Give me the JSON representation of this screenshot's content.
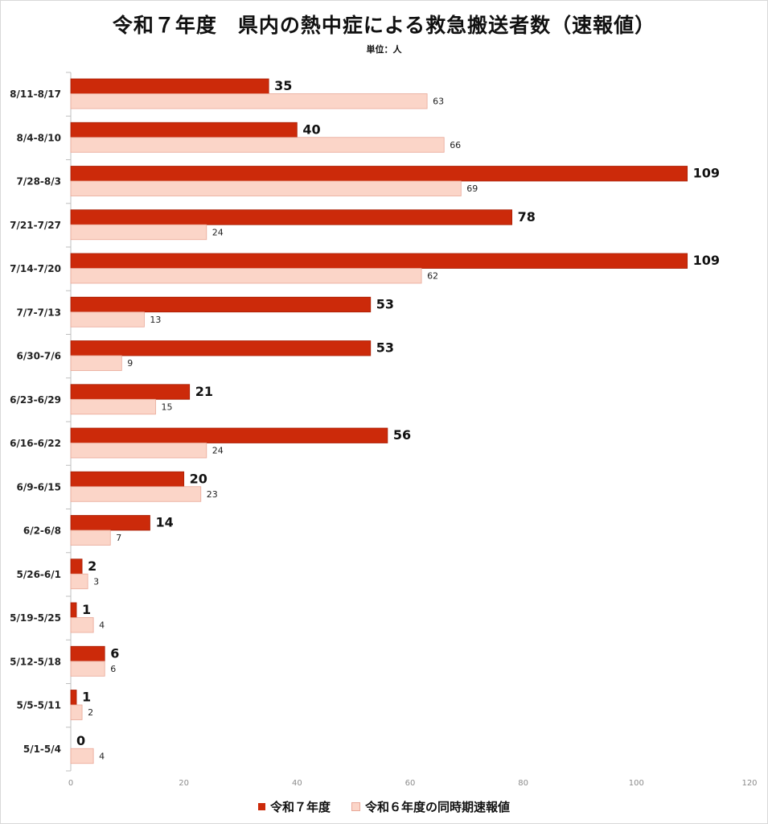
{
  "colors": {
    "series_a": "#cc2a0a",
    "series_a_border": "#a81f05",
    "series_b": "#fbd5c8",
    "series_b_border": "#e9a898",
    "axis": "#bfbfbf"
  },
  "chart_data": {
    "type": "bar",
    "orientation": "horizontal",
    "title": "令和７年度　県内の熱中症による救急搬送者数（速報値）",
    "subtitle": "単位：人",
    "categories": [
      "8/11-8/17",
      "8/4-8/10",
      "7/28-8/3",
      "7/21-7/27",
      "7/14-7/20",
      "7/7-7/13",
      "6/30-7/6",
      "6/23-6/29",
      "6/16-6/22",
      "6/9-6/15",
      "6/2-6/8",
      "5/26-6/1",
      "5/19-5/25",
      "5/12-5/18",
      "5/5-5/11",
      "5/1-5/4"
    ],
    "series": [
      {
        "name": "令和７年度",
        "values": [
          35,
          40,
          109,
          78,
          109,
          53,
          53,
          21,
          56,
          20,
          14,
          2,
          1,
          6,
          1,
          0
        ]
      },
      {
        "name": "令和６年度の同時期速報値",
        "values": [
          63,
          66,
          69,
          24,
          62,
          13,
          9,
          15,
          24,
          23,
          7,
          3,
          4,
          6,
          2,
          4
        ]
      }
    ],
    "xlim": [
      0,
      120
    ],
    "xticks": [
      0,
      20,
      40,
      60,
      80,
      100,
      120
    ],
    "legend_position": "bottom",
    "grid": false
  }
}
